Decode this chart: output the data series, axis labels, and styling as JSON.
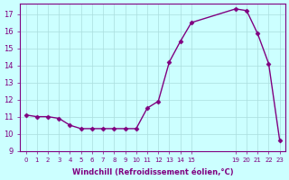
{
  "x": [
    0,
    1,
    2,
    3,
    4,
    5,
    6,
    7,
    8,
    9,
    10,
    11,
    12,
    13,
    14,
    15,
    19,
    20,
    21,
    22,
    23
  ],
  "y": [
    11.1,
    11.0,
    11.0,
    10.9,
    10.5,
    10.3,
    10.3,
    10.3,
    10.3,
    10.3,
    10.3,
    11.5,
    11.9,
    14.2,
    15.4,
    16.5,
    17.3,
    17.2,
    15.85,
    14.1,
    9.6
  ],
  "xticks": [
    0,
    1,
    2,
    3,
    4,
    5,
    6,
    7,
    8,
    9,
    10,
    11,
    12,
    13,
    14,
    15,
    19,
    20,
    21,
    22,
    23
  ],
  "xtick_labels": [
    "0",
    "1",
    "2",
    "3",
    "4",
    "5",
    "6",
    "7",
    "8",
    "9",
    "10",
    "11",
    "12",
    "13",
    "14",
    "15",
    "19",
    "20",
    "21",
    "22",
    "23"
  ],
  "ylim": [
    9,
    17.6
  ],
  "yticks": [
    9,
    10,
    11,
    12,
    13,
    14,
    15,
    16,
    17
  ],
  "xlabel": "Windchill (Refroidissement éolien,°C)",
  "line_color": "#800080",
  "marker_color": "#800080",
  "bg_color": "#ccffff",
  "grid_color": "#aadddd",
  "tick_color": "#800080",
  "label_color": "#800080"
}
